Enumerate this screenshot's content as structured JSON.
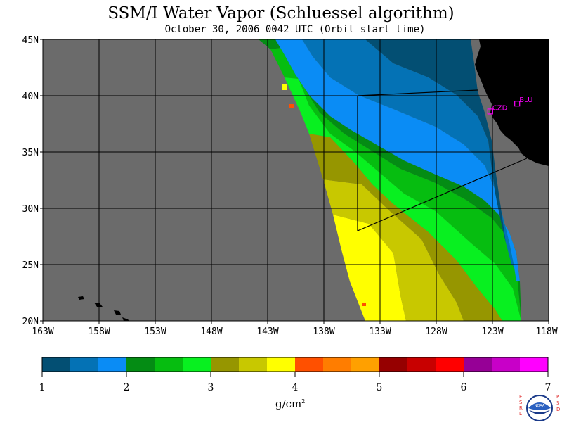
{
  "title": "SSM/I Water Vapor (Schluessel algorithm)",
  "subtitle": "October 30, 2006  0042 UTC  (Orbit start time)",
  "map": {
    "lat_labels": [
      "45N",
      "40N",
      "35N",
      "30N",
      "25N",
      "20N"
    ],
    "lon_labels": [
      "163W",
      "158W",
      "153W",
      "148W",
      "143W",
      "138W",
      "133W",
      "128W",
      "123W",
      "118W"
    ],
    "lat_range": [
      20,
      45
    ],
    "lon_range": [
      -163,
      -118
    ],
    "no_data_color": "#6b6b6b",
    "land_color": "#000000",
    "grid_color": "#000000",
    "stations": [
      {
        "code": "CZD",
        "lat": 38.6,
        "lon": -123.2,
        "color": "#ff00ff"
      },
      {
        "code": "BLU",
        "lat": 39.3,
        "lon": -120.8,
        "color": "#ff00ff"
      }
    ]
  },
  "colorbar": {
    "tick_labels": [
      "1",
      "2",
      "3",
      "4",
      "5",
      "6",
      "7"
    ],
    "min": 1,
    "max": 7,
    "colors": [
      "#034f73",
      "#0472b5",
      "#0a8cf5",
      "#048c14",
      "#06bd10",
      "#08f020",
      "#969600",
      "#c8c800",
      "#ffff00",
      "#ff5000",
      "#ff7d00",
      "#ffa000",
      "#960000",
      "#c80000",
      "#ff0000",
      "#960096",
      "#c800c8",
      "#ff00ff"
    ],
    "units": "g/cm",
    "units_exponent": "2"
  },
  "logo": {
    "left_letters": "ESRL",
    "right_letters": "PSD",
    "center_text": "NOAA"
  }
}
